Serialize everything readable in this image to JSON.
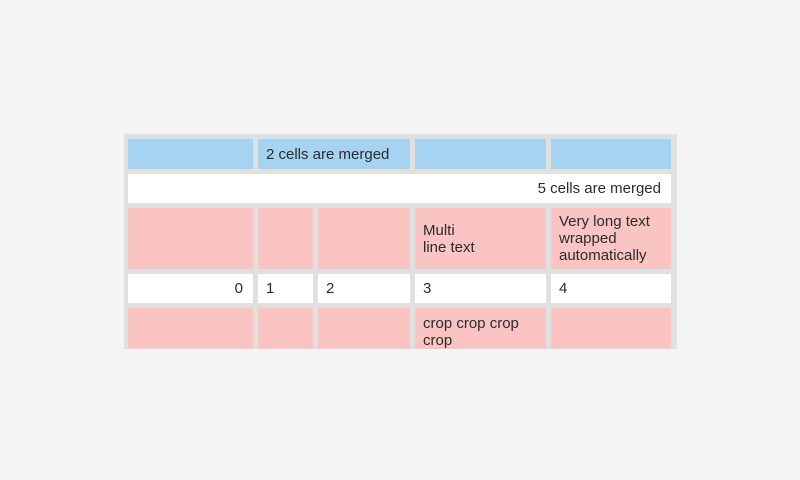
{
  "theme": {
    "page-bg": "#f4f4f4",
    "grid-bg": "#e0e0e0",
    "blue": "#a6d3f2",
    "pink": "#fac4c2",
    "white": "#ffffff",
    "text": "#2b2b2b"
  },
  "table": {
    "rows": [
      {
        "cells": [
          {
            "text": ""
          },
          {
            "text": "2 cells are merged",
            "merged": 2
          },
          {
            "text": ""
          },
          {
            "text": ""
          }
        ]
      },
      {
        "cells": [
          {
            "text": "5 cells are merged",
            "merged": 5,
            "align": "right"
          }
        ]
      },
      {
        "cells": [
          {
            "text": ""
          },
          {
            "text": ""
          },
          {
            "text": ""
          },
          {
            "text": "Multi\nline text"
          },
          {
            "text": "Very long text wrapped automatically"
          }
        ]
      },
      {
        "cells": [
          {
            "text": "0",
            "align": "right"
          },
          {
            "text": "1"
          },
          {
            "text": "2"
          },
          {
            "text": "3"
          },
          {
            "text": "4"
          }
        ]
      },
      {
        "cells": [
          {
            "text": ""
          },
          {
            "text": ""
          },
          {
            "text": ""
          },
          {
            "text": "crop crop crop crop",
            "cropped": true
          },
          {
            "text": ""
          }
        ]
      }
    ]
  }
}
